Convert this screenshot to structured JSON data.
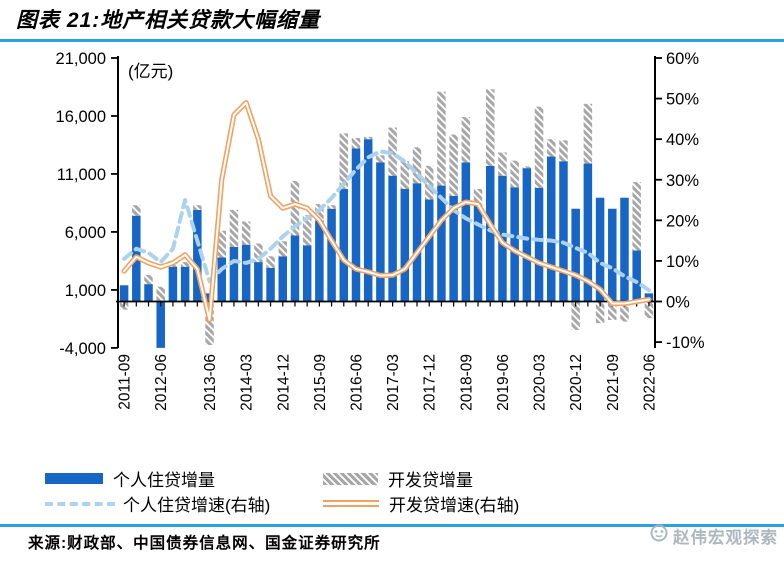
{
  "page": {
    "title": "图表 21:地产相关贷款大幅缩量",
    "source": "来源:财政部、中国债券信息网、国金证券研究所",
    "watermark": "赵伟宏观探索"
  },
  "colors": {
    "rule_blue": "#29a3dc",
    "bar_blue": "#1766c5",
    "bar_gray": "#a7a7a7",
    "line_lightblue": "#abd3f0",
    "line_orange": "#f1a263",
    "axis_black": "#000000"
  },
  "chart_data": {
    "type": "combo",
    "unit_label": "(亿元)",
    "categories": [
      "2011-09",
      "2011-12",
      "2012-03",
      "2012-06",
      "2012-09",
      "2012-12",
      "2013-03",
      "2013-06",
      "2013-09",
      "2013-12",
      "2014-03",
      "2014-06",
      "2014-09",
      "2014-12",
      "2015-03",
      "2015-06",
      "2015-09",
      "2015-12",
      "2016-03",
      "2016-06",
      "2016-09",
      "2016-12",
      "2017-03",
      "2017-06",
      "2017-09",
      "2017-12",
      "2018-03",
      "2018-06",
      "2018-09",
      "2018-12",
      "2019-03",
      "2019-06",
      "2019-09",
      "2019-12",
      "2020-03",
      "2020-06",
      "2020-09",
      "2020-12",
      "2021-03",
      "2021-06",
      "2021-09",
      "2021-12",
      "2022-03",
      "2022-06"
    ],
    "x_tick_indices": [
      0,
      3,
      7,
      10,
      13,
      16,
      19,
      22,
      25,
      28,
      31,
      34,
      37,
      40,
      43
    ],
    "left_axis": {
      "tick_labels": [
        "21,000",
        "16,000",
        "11,000",
        "6,000",
        "1,000",
        "-4,000"
      ],
      "tick_values": [
        21000,
        16000,
        11000,
        6000,
        1000,
        -4000
      ],
      "min": -4000,
      "max": 21000
    },
    "right_axis": {
      "tick_labels": [
        "60%",
        "50%",
        "40%",
        "30%",
        "20%",
        "10%",
        "0%",
        "-10%"
      ],
      "tick_values": [
        60,
        50,
        40,
        30,
        20,
        10,
        0,
        -10
      ],
      "min": -10,
      "max": 60
    },
    "series": [
      {
        "name": "个人住贷增量",
        "type": "bar",
        "axis": "left",
        "color": "#1766c5",
        "values": [
          1400,
          7400,
          1500,
          -4000,
          3000,
          3000,
          7900,
          700,
          3800,
          4700,
          4900,
          3400,
          2900,
          3900,
          5700,
          4850,
          7000,
          8000,
          9700,
          13200,
          14000,
          12000,
          10850,
          9700,
          10200,
          8800,
          10000,
          9100,
          12000,
          8300,
          11700,
          10850,
          9850,
          11500,
          9800,
          12500,
          12100,
          8000,
          11900,
          8950,
          8000,
          8950,
          4400,
          700
        ]
      },
      {
        "name": "开发贷增量",
        "type": "bar",
        "style": "hatched",
        "axis": "left",
        "color": "#a7a7a7",
        "values": [
          -700,
          900,
          800,
          1270,
          500,
          400,
          400,
          -3750,
          2300,
          3200,
          2000,
          1600,
          1000,
          1300,
          4700,
          2600,
          1400,
          300,
          4800,
          900,
          200,
          600,
          4150,
          2400,
          3100,
          2900,
          8100,
          5300,
          3900,
          1400,
          6600,
          2000,
          2300,
          150,
          7000,
          1500,
          1800,
          -2450,
          5150,
          -1870,
          -1590,
          -1730,
          5900,
          -1440
        ]
      },
      {
        "name": "个人住贷增速(右轴)",
        "type": "line",
        "style": "dashed",
        "axis": "right",
        "color": "#abd3f0",
        "values": [
          10.5,
          13,
          12,
          9.7,
          13,
          25,
          15,
          5,
          8,
          10,
          9.5,
          10.5,
          13,
          16,
          18.5,
          20.5,
          22.5,
          25.5,
          29,
          32.5,
          35.5,
          37,
          36.5,
          34.5,
          31.5,
          28.5,
          25.5,
          22.5,
          20.5,
          19,
          17.5,
          16.5,
          16,
          15.5,
          15.2,
          15,
          14.5,
          13.2,
          12,
          9.5,
          8.2,
          6.2,
          4.8,
          2.8
        ]
      },
      {
        "name": "开发贷增速(右轴)",
        "type": "line",
        "style": "double",
        "axis": "right",
        "color": "#f1a263",
        "values": [
          7.5,
          11,
          9.5,
          8.5,
          9.5,
          11.5,
          8,
          -4.5,
          30,
          46,
          49,
          40,
          26,
          23,
          24,
          23,
          20,
          15,
          10.2,
          8,
          7.3,
          6.4,
          6.5,
          8,
          12,
          16,
          20,
          23,
          24.5,
          24,
          19,
          14.5,
          12.5,
          11,
          9.5,
          8.5,
          7.5,
          6.5,
          5,
          3,
          -0.5,
          -0.5,
          0,
          0.5
        ]
      }
    ]
  }
}
